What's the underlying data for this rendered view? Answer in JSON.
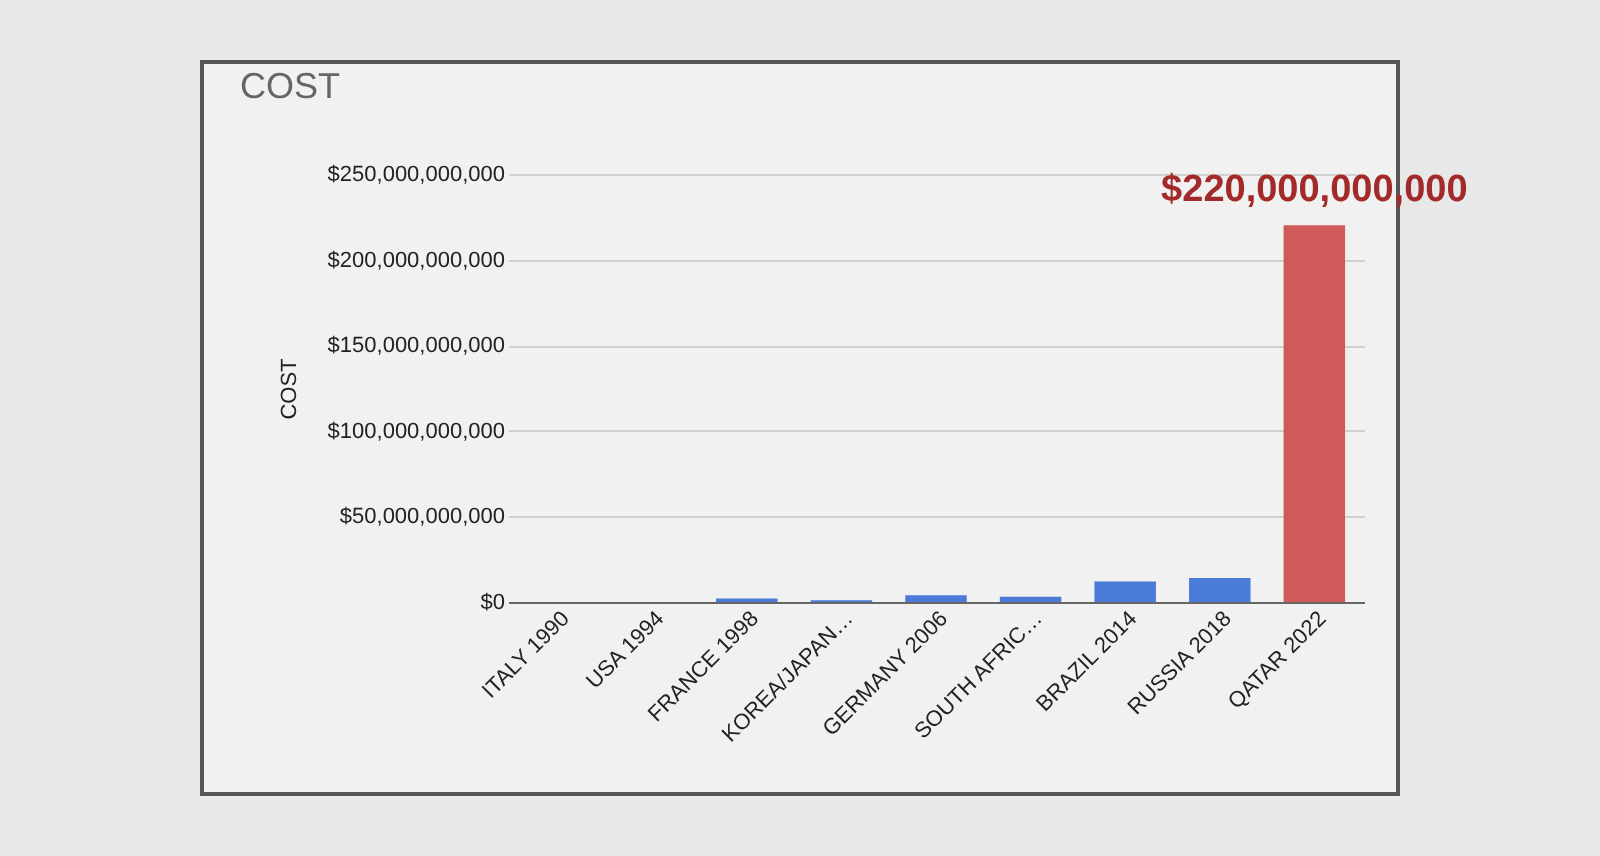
{
  "chart_data": {
    "type": "bar",
    "title": "COST",
    "ylabel": "COST",
    "categories": [
      "ITALY 1990",
      "USA 1994",
      "FRANCE 1998",
      "KOREA/JAPAN…",
      "GERMANY 2006",
      "SOUTH AFRIC…",
      "BRAZIL 2014",
      "RUSSIA 2018",
      "QATAR 2022"
    ],
    "values": [
      0,
      0,
      2000000000,
      1000000000,
      4000000000,
      3000000000,
      12000000000,
      14000000000,
      220000000000
    ],
    "colors": [
      "#4a7bd8",
      "#4a7bd8",
      "#4a7bd8",
      "#4a7bd8",
      "#4a7bd8",
      "#4a7bd8",
      "#4a7bd8",
      "#4a7bd8",
      "#d05a5a"
    ],
    "value_labels": [
      null,
      null,
      null,
      null,
      null,
      null,
      null,
      null,
      "$220,000,000,000"
    ],
    "ylim": [
      0,
      250000000000
    ],
    "yticks": [
      {
        "value": 0,
        "label": "$0"
      },
      {
        "value": 50000000000,
        "label": "$50,000,000,000"
      },
      {
        "value": 100000000000,
        "label": "$100,000,000,000"
      },
      {
        "value": 150000000000,
        "label": "$150,000,000,000"
      },
      {
        "value": 200000000000,
        "label": "$200,000,000,000"
      },
      {
        "value": 250000000000,
        "label": "$250,000,000,000"
      }
    ],
    "grid": "y"
  }
}
